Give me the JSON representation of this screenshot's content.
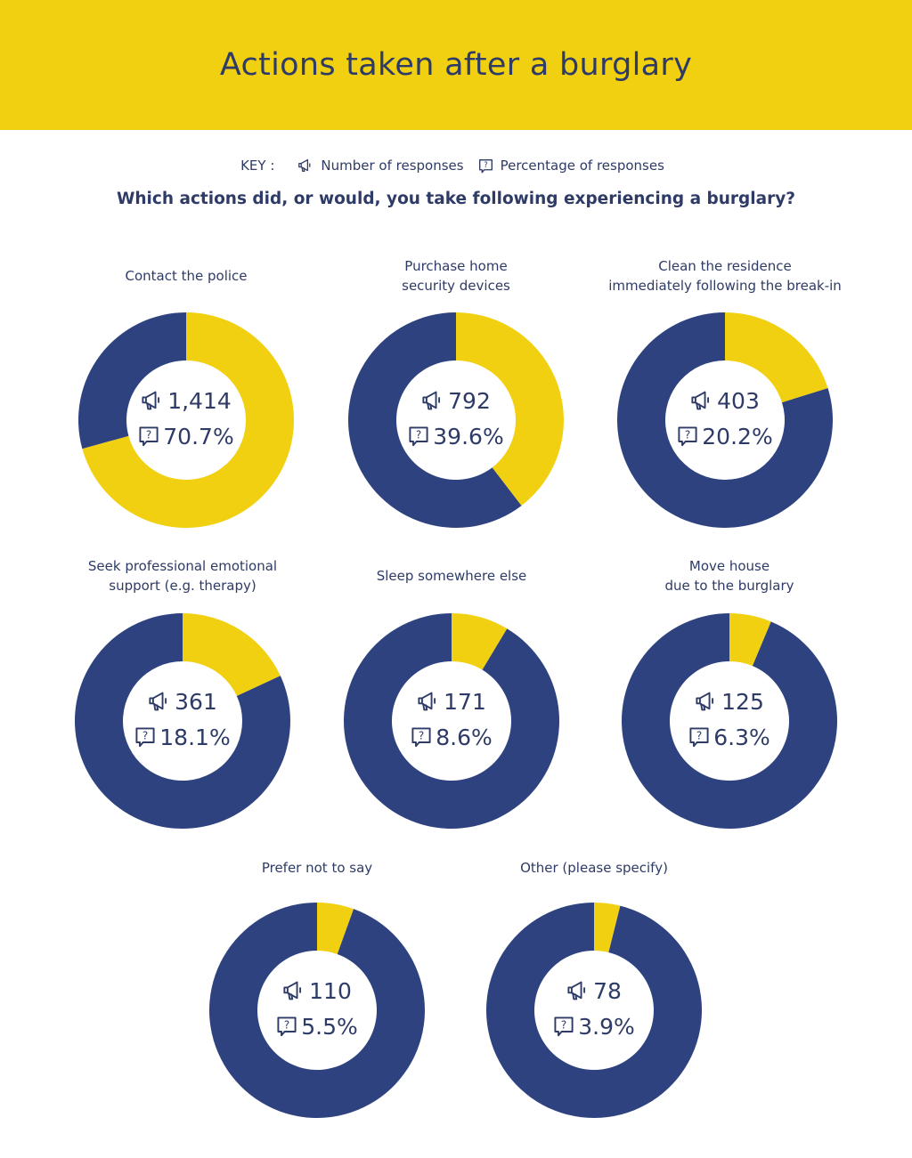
{
  "header": {
    "title": "Actions taken after a burglary"
  },
  "key": {
    "label": "KEY :",
    "responses_label": "Number of responses",
    "percentage_label": "Percentage of responses"
  },
  "question": "Which actions did, or would, you take following experiencing a burglary?",
  "colors": {
    "accent_yellow": "#f1d011",
    "navy": "#2e4280",
    "text": "#2e3b66"
  },
  "icons": {
    "responses": "megaphone-icon",
    "percentage": "question-bubble-icon"
  },
  "chart_data": {
    "type": "donut",
    "items": [
      {
        "label_lines": [
          "Contact the police"
        ],
        "count": "1,414",
        "percent": "70.7%",
        "value": 70.7
      },
      {
        "label_lines": [
          "Purchase home",
          "security devices"
        ],
        "count": "792",
        "percent": "39.6%",
        "value": 39.6
      },
      {
        "label_lines": [
          "Clean the residence",
          "immediately following the break-in"
        ],
        "count": "403",
        "percent": "20.2%",
        "value": 20.2
      },
      {
        "label_lines": [
          "Seek professional emotional",
          "support (e.g. therapy)"
        ],
        "count": "361",
        "percent": "18.1%",
        "value": 18.1
      },
      {
        "label_lines": [
          "Sleep somewhere else"
        ],
        "count": "171",
        "percent": "8.6%",
        "value": 8.6
      },
      {
        "label_lines": [
          "Move house",
          "due to the burglary"
        ],
        "count": "125",
        "percent": "6.3%",
        "value": 6.3
      },
      {
        "label_lines": [
          "Prefer not to say"
        ],
        "count": "110",
        "percent": "5.5%",
        "value": 5.5
      },
      {
        "label_lines": [
          "Other (please specify)"
        ],
        "count": "78",
        "percent": "3.9%",
        "value": 3.9
      }
    ]
  }
}
